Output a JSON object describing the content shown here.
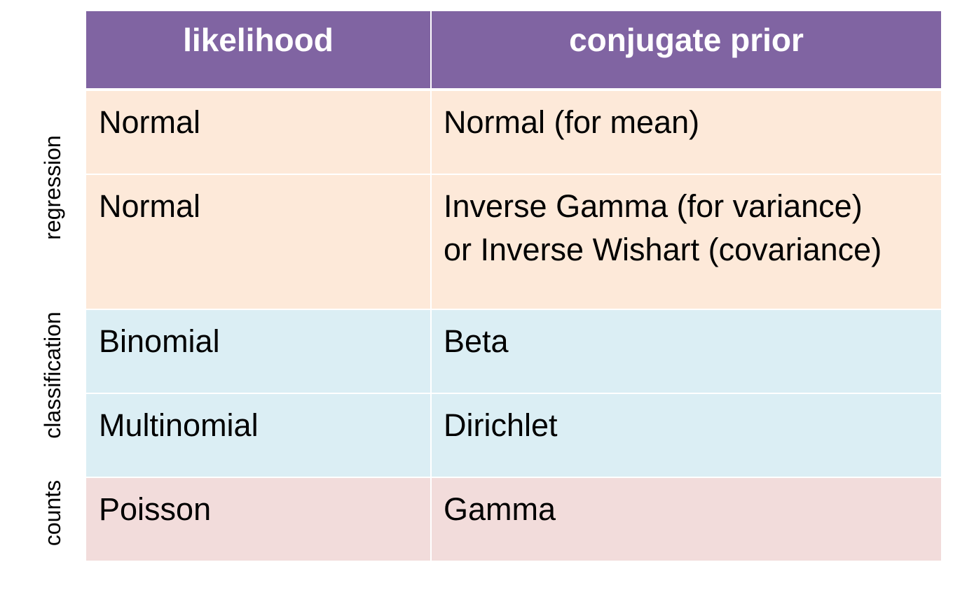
{
  "header": {
    "likelihood": "likelihood",
    "conjugate_prior": "conjugate prior"
  },
  "groups": {
    "regression": "regression",
    "classification": "classification",
    "counts": "counts"
  },
  "colors": {
    "header_bg": "#8064a2",
    "regression_bg": "#fde9d9",
    "classification_bg": "#dbeef4",
    "counts_bg": "#f2dcdb"
  },
  "rows": [
    {
      "likelihood": "Normal",
      "prior": [
        "Normal (for mean)"
      ]
    },
    {
      "likelihood": "Normal",
      "prior": [
        "Inverse Gamma (for variance)",
        "or Inverse Wishart (covariance)"
      ]
    },
    {
      "likelihood": "Binomial",
      "prior": [
        "Beta"
      ]
    },
    {
      "likelihood": "Multinomial",
      "prior": [
        "Dirichlet"
      ]
    },
    {
      "likelihood": "Poisson",
      "prior": [
        "Gamma"
      ]
    }
  ]
}
